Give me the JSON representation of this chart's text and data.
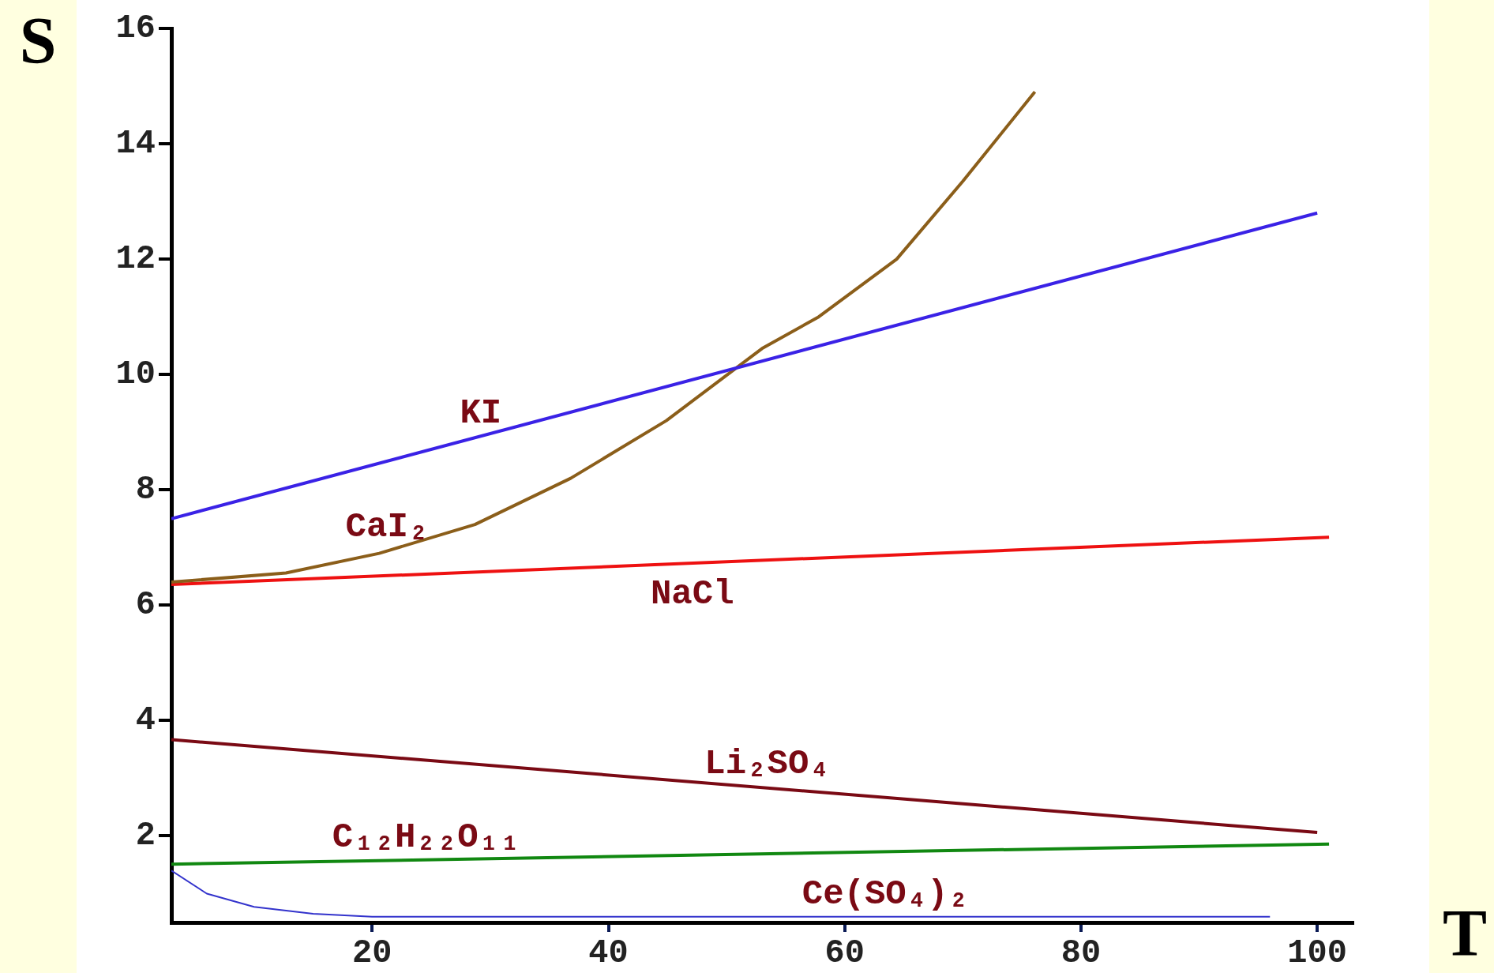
{
  "chart_data": {
    "type": "line",
    "xlabel": "T",
    "ylabel": "S",
    "xlim": [
      3,
      103
    ],
    "ylim": [
      0.5,
      16
    ],
    "xticks": [
      20,
      40,
      60,
      80,
      100
    ],
    "yticks": [
      2,
      4,
      6,
      8,
      10,
      12,
      14,
      16
    ],
    "grid": false,
    "legend": false,
    "marker": "none",
    "line_style": "solid",
    "series": [
      {
        "name": "KI",
        "color": "#3a22e6",
        "x": [
          3,
          100
        ],
        "values": [
          7.5,
          12.8
        ]
      },
      {
        "name": "CaI₂",
        "color": "#8b5e1a",
        "x": [
          3,
          12.7,
          20.6,
          28.7,
          36.8,
          44.9,
          53,
          57.8,
          64.4,
          70,
          76.1
        ],
        "values": [
          6.4,
          6.56,
          6.9,
          7.4,
          8.2,
          9.2,
          10.45,
          11.0,
          12.0,
          13.35,
          14.9
        ]
      },
      {
        "name": "NaCl",
        "color": "#ee1111",
        "x": [
          3,
          101
        ],
        "values": [
          6.36,
          7.18
        ]
      },
      {
        "name": "Li₂SO₄",
        "color": "#7a0a14",
        "x": [
          3,
          100
        ],
        "values": [
          3.67,
          2.06
        ]
      },
      {
        "name": "C₁₂H₂₂O₁₁",
        "color": "#118811",
        "x": [
          3,
          101
        ],
        "values": [
          1.51,
          1.86
        ]
      },
      {
        "name": "Ce(SO₄)₂",
        "color": "#3333cc",
        "x": [
          3,
          6,
          10,
          15,
          20,
          96
        ],
        "values": [
          1.4,
          1.0,
          0.77,
          0.65,
          0.6,
          0.6
        ]
      }
    ]
  }
}
